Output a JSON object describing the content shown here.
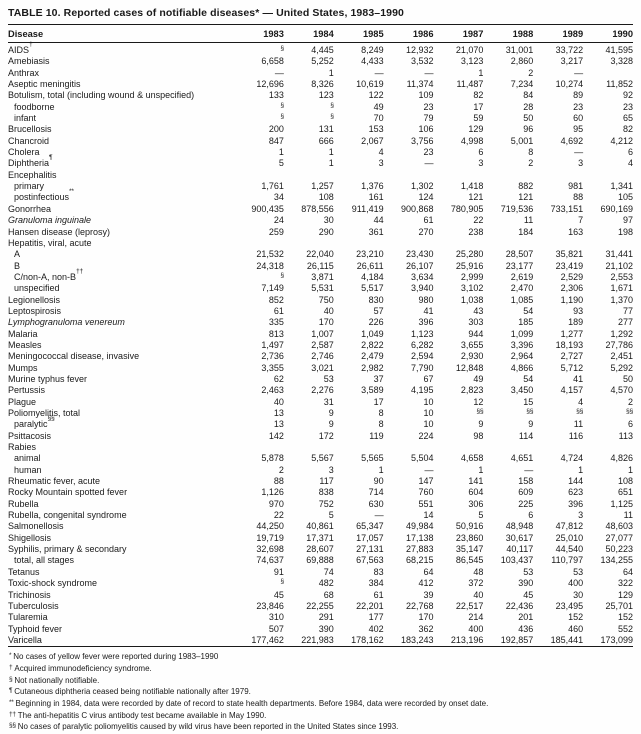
{
  "title": "TABLE 10. Reported cases of notifiable diseases* — United States, 1983–1990",
  "table": {
    "columns": [
      "Disease",
      "1983",
      "1984",
      "1985",
      "1986",
      "1987",
      "1988",
      "1989",
      "1990"
    ],
    "rows": [
      {
        "name": "AIDS",
        "sup": "†",
        "indent": false,
        "italic": false,
        "values": [
          "§",
          "4,445",
          "8,249",
          "12,932",
          "21,070",
          "31,001",
          "33,722",
          "41,595"
        ]
      },
      {
        "name": "Amebiasis",
        "sup": "",
        "indent": false,
        "italic": false,
        "values": [
          "6,658",
          "5,252",
          "4,433",
          "3,532",
          "3,123",
          "2,860",
          "3,217",
          "3,328"
        ]
      },
      {
        "name": "Anthrax",
        "sup": "",
        "indent": false,
        "italic": false,
        "values": [
          "—",
          "1",
          "—",
          "—",
          "1",
          "2",
          "—",
          ""
        ]
      },
      {
        "name": "Aseptic meningitis",
        "sup": "",
        "indent": false,
        "italic": false,
        "values": [
          "12,696",
          "8,326",
          "10,619",
          "11,374",
          "11,487",
          "7,234",
          "10,274",
          "11,852"
        ]
      },
      {
        "name": "Botulism, total (including wound & unspecified)",
        "sup": "",
        "indent": false,
        "italic": false,
        "values": [
          "133",
          "123",
          "122",
          "109",
          "82",
          "84",
          "89",
          "92"
        ]
      },
      {
        "name": "foodborne",
        "sup": "",
        "indent": true,
        "italic": false,
        "values": [
          "§",
          "§",
          "49",
          "23",
          "17",
          "28",
          "23",
          "23"
        ]
      },
      {
        "name": "infant",
        "sup": "",
        "indent": true,
        "italic": false,
        "values": [
          "§",
          "§",
          "70",
          "79",
          "59",
          "50",
          "60",
          "65"
        ]
      },
      {
        "name": "Brucellosis",
        "sup": "",
        "indent": false,
        "italic": false,
        "values": [
          "200",
          "131",
          "153",
          "106",
          "129",
          "96",
          "95",
          "82"
        ]
      },
      {
        "name": "Chancroid",
        "sup": "",
        "indent": false,
        "italic": false,
        "values": [
          "847",
          "666",
          "2,067",
          "3,756",
          "4,998",
          "5,001",
          "4,692",
          "4,212"
        ]
      },
      {
        "name": "Cholera",
        "sup": "",
        "indent": false,
        "italic": false,
        "values": [
          "1",
          "1",
          "4",
          "23",
          "6",
          "8",
          "—",
          "6"
        ]
      },
      {
        "name": "Diphtheria",
        "sup": "¶",
        "indent": false,
        "italic": false,
        "values": [
          "5",
          "1",
          "3",
          "—",
          "3",
          "2",
          "3",
          "4"
        ]
      },
      {
        "name": "Encephalitis",
        "sup": "",
        "indent": false,
        "italic": false,
        "values": [
          "",
          "",
          "",
          "",
          "",
          "",
          "",
          ""
        ]
      },
      {
        "name": "primary",
        "sup": "",
        "indent": true,
        "italic": false,
        "values": [
          "1,761",
          "1,257",
          "1,376",
          "1,302",
          "1,418",
          "882",
          "981",
          "1,341"
        ]
      },
      {
        "name": "postinfectious",
        "sup": "**",
        "indent": true,
        "italic": false,
        "values": [
          "34",
          "108",
          "161",
          "124",
          "121",
          "121",
          "88",
          "105"
        ]
      },
      {
        "name": "Gonorrhea",
        "sup": "",
        "indent": false,
        "italic": false,
        "values": [
          "900,435",
          "878,556",
          "911,419",
          "900,868",
          "780,905",
          "719,536",
          "733,151",
          "690,169"
        ]
      },
      {
        "name": "Granuloma inguinale",
        "sup": "",
        "indent": false,
        "italic": true,
        "values": [
          "24",
          "30",
          "44",
          "61",
          "22",
          "11",
          "7",
          "97"
        ]
      },
      {
        "name": "Hansen disease (leprosy)",
        "sup": "",
        "indent": false,
        "italic": false,
        "values": [
          "259",
          "290",
          "361",
          "270",
          "238",
          "184",
          "163",
          "198"
        ]
      },
      {
        "name": "Hepatitis, viral, acute",
        "sup": "",
        "indent": false,
        "italic": false,
        "values": [
          "",
          "",
          "",
          "",
          "",
          "",
          "",
          ""
        ]
      },
      {
        "name": "A",
        "sup": "",
        "indent": true,
        "italic": false,
        "values": [
          "21,532",
          "22,040",
          "23,210",
          "23,430",
          "25,280",
          "28,507",
          "35,821",
          "31,441"
        ]
      },
      {
        "name": "B",
        "sup": "",
        "indent": true,
        "italic": false,
        "values": [
          "24,318",
          "26,115",
          "26,611",
          "26,107",
          "25,916",
          "23,177",
          "23,419",
          "21,102"
        ]
      },
      {
        "name": "C/non-A, non-B",
        "sup": "††",
        "indent": true,
        "italic": false,
        "values": [
          "§",
          "3,871",
          "4,184",
          "3,634",
          "2,999",
          "2,619",
          "2,529",
          "2,553"
        ]
      },
      {
        "name": "unspecified",
        "sup": "",
        "indent": true,
        "italic": false,
        "values": [
          "7,149",
          "5,531",
          "5,517",
          "3,940",
          "3,102",
          "2,470",
          "2,306",
          "1,671"
        ]
      },
      {
        "name": "Legionellosis",
        "sup": "",
        "indent": false,
        "italic": false,
        "values": [
          "852",
          "750",
          "830",
          "980",
          "1,038",
          "1,085",
          "1,190",
          "1,370"
        ]
      },
      {
        "name": "Leptospirosis",
        "sup": "",
        "indent": false,
        "italic": false,
        "values": [
          "61",
          "40",
          "57",
          "41",
          "43",
          "54",
          "93",
          "77"
        ]
      },
      {
        "name": "Lymphogranuloma venereum",
        "sup": "",
        "indent": false,
        "italic": true,
        "values": [
          "335",
          "170",
          "226",
          "396",
          "303",
          "185",
          "189",
          "277"
        ]
      },
      {
        "name": "Malaria",
        "sup": "",
        "indent": false,
        "italic": false,
        "values": [
          "813",
          "1,007",
          "1,049",
          "1,123",
          "944",
          "1,099",
          "1,277",
          "1,292"
        ]
      },
      {
        "name": "Measles",
        "sup": "",
        "indent": false,
        "italic": false,
        "values": [
          "1,497",
          "2,587",
          "2,822",
          "6,282",
          "3,655",
          "3,396",
          "18,193",
          "27,786"
        ]
      },
      {
        "name": "Meningococcal disease, invasive",
        "sup": "",
        "indent": false,
        "italic": false,
        "values": [
          "2,736",
          "2,746",
          "2,479",
          "2,594",
          "2,930",
          "2,964",
          "2,727",
          "2,451"
        ]
      },
      {
        "name": "Mumps",
        "sup": "",
        "indent": false,
        "italic": false,
        "values": [
          "3,355",
          "3,021",
          "2,982",
          "7,790",
          "12,848",
          "4,866",
          "5,712",
          "5,292"
        ]
      },
      {
        "name": "Murine typhus fever",
        "sup": "",
        "indent": false,
        "italic": false,
        "values": [
          "62",
          "53",
          "37",
          "67",
          "49",
          "54",
          "41",
          "50"
        ]
      },
      {
        "name": "Pertussis",
        "sup": "",
        "indent": false,
        "italic": false,
        "values": [
          "2,463",
          "2,276",
          "3,589",
          "4,195",
          "2,823",
          "3,450",
          "4,157",
          "4,570"
        ]
      },
      {
        "name": "Plague",
        "sup": "",
        "indent": false,
        "italic": false,
        "values": [
          "40",
          "31",
          "17",
          "10",
          "12",
          "15",
          "4",
          "2"
        ]
      },
      {
        "name": "Poliomyelitis, total",
        "sup": "",
        "indent": false,
        "italic": false,
        "values": [
          "13",
          "9",
          "8",
          "10",
          "§§",
          "§§",
          "§§",
          "§§"
        ]
      },
      {
        "name": "paralytic",
        "sup": "§§",
        "indent": true,
        "italic": false,
        "values": [
          "13",
          "9",
          "8",
          "10",
          "9",
          "9",
          "11",
          "6"
        ]
      },
      {
        "name": "Psittacosis",
        "sup": "",
        "indent": false,
        "italic": false,
        "values": [
          "142",
          "172",
          "119",
          "224",
          "98",
          "114",
          "116",
          "113"
        ]
      },
      {
        "name": "Rabies",
        "sup": "",
        "indent": false,
        "italic": false,
        "values": [
          "",
          "",
          "",
          "",
          "",
          "",
          "",
          ""
        ]
      },
      {
        "name": "animal",
        "sup": "",
        "indent": true,
        "italic": false,
        "values": [
          "5,878",
          "5,567",
          "5,565",
          "5,504",
          "4,658",
          "4,651",
          "4,724",
          "4,826"
        ]
      },
      {
        "name": "human",
        "sup": "",
        "indent": true,
        "italic": false,
        "values": [
          "2",
          "3",
          "1",
          "—",
          "1",
          "—",
          "1",
          "1"
        ]
      },
      {
        "name": "Rheumatic fever, acute",
        "sup": "",
        "indent": false,
        "italic": false,
        "values": [
          "88",
          "117",
          "90",
          "147",
          "141",
          "158",
          "144",
          "108"
        ]
      },
      {
        "name": "Rocky Mountain spotted fever",
        "sup": "",
        "indent": false,
        "italic": false,
        "values": [
          "1,126",
          "838",
          "714",
          "760",
          "604",
          "609",
          "623",
          "651"
        ]
      },
      {
        "name": "Rubella",
        "sup": "",
        "indent": false,
        "italic": false,
        "values": [
          "970",
          "752",
          "630",
          "551",
          "306",
          "225",
          "396",
          "1,125"
        ]
      },
      {
        "name": "Rubella, congenital syndrome",
        "sup": "",
        "indent": false,
        "italic": false,
        "values": [
          "22",
          "5",
          "—",
          "14",
          "5",
          "6",
          "3",
          "11"
        ]
      },
      {
        "name": "Salmonellosis",
        "sup": "",
        "indent": false,
        "italic": false,
        "values": [
          "44,250",
          "40,861",
          "65,347",
          "49,984",
          "50,916",
          "48,948",
          "47,812",
          "48,603"
        ]
      },
      {
        "name": "Shigellosis",
        "sup": "",
        "indent": false,
        "italic": false,
        "values": [
          "19,719",
          "17,371",
          "17,057",
          "17,138",
          "23,860",
          "30,617",
          "25,010",
          "27,077"
        ]
      },
      {
        "name": "Syphilis, primary & secondary",
        "sup": "",
        "indent": false,
        "italic": false,
        "values": [
          "32,698",
          "28,607",
          "27,131",
          "27,883",
          "35,147",
          "40,117",
          "44,540",
          "50,223"
        ]
      },
      {
        "name": "total, all stages",
        "sup": "",
        "indent": true,
        "italic": false,
        "values": [
          "74,637",
          "69,888",
          "67,563",
          "68,215",
          "86,545",
          "103,437",
          "110,797",
          "134,255"
        ]
      },
      {
        "name": "Tetanus",
        "sup": "",
        "indent": false,
        "italic": false,
        "values": [
          "91",
          "74",
          "83",
          "64",
          "48",
          "53",
          "53",
          "64"
        ]
      },
      {
        "name": "Toxic-shock syndrome",
        "sup": "",
        "indent": false,
        "italic": false,
        "values": [
          "§",
          "482",
          "384",
          "412",
          "372",
          "390",
          "400",
          "322"
        ]
      },
      {
        "name": "Trichinosis",
        "sup": "",
        "indent": false,
        "italic": false,
        "values": [
          "45",
          "68",
          "61",
          "39",
          "40",
          "45",
          "30",
          "129"
        ]
      },
      {
        "name": "Tuberculosis",
        "sup": "",
        "indent": false,
        "italic": false,
        "values": [
          "23,846",
          "22,255",
          "22,201",
          "22,768",
          "22,517",
          "22,436",
          "23,495",
          "25,701"
        ]
      },
      {
        "name": "Tularemia",
        "sup": "",
        "indent": false,
        "italic": false,
        "values": [
          "310",
          "291",
          "177",
          "170",
          "214",
          "201",
          "152",
          "152"
        ]
      },
      {
        "name": "Typhoid fever",
        "sup": "",
        "indent": false,
        "italic": false,
        "values": [
          "507",
          "390",
          "402",
          "362",
          "400",
          "436",
          "460",
          "552"
        ]
      },
      {
        "name": "Varicella",
        "sup": "",
        "indent": false,
        "italic": false,
        "values": [
          "177,462",
          "221,983",
          "178,162",
          "183,243",
          "213,196",
          "192,857",
          "185,441",
          "173,099"
        ]
      }
    ]
  },
  "footnotes": [
    {
      "marker": "*",
      "text": "No cases of yellow fever were reported during 1983–1990"
    },
    {
      "marker": "†",
      "text": "Acquired immunodeficiency syndrome."
    },
    {
      "marker": "§",
      "text": "Not nationally notifiable."
    },
    {
      "marker": "¶",
      "text": "Cutaneous diphtheria ceased being notifiable nationally after 1979."
    },
    {
      "marker": "**",
      "text": "Beginning in 1984, data were recorded by date of record to state health departments. Before 1984, data were recorded by onset date."
    },
    {
      "marker": "††",
      "text": "The anti-hepatitis C virus antibody test became available in May 1990."
    },
    {
      "marker": "§§",
      "text": "No cases of paralytic poliomyelitis caused by wild virus have been reported in the United States since 1993."
    }
  ]
}
